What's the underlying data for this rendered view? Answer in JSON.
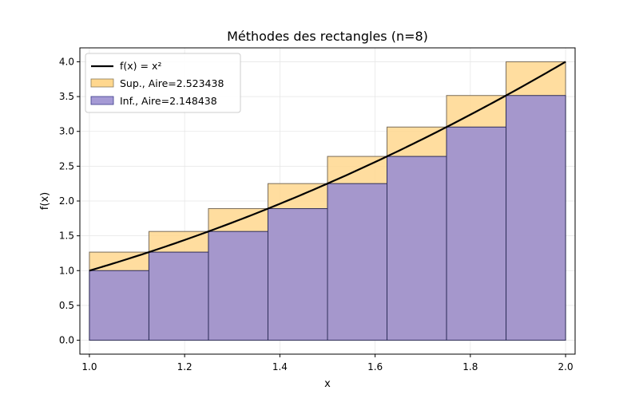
{
  "chart_data": {
    "type": "bar",
    "title": "Méthodes des rectangles (n=8)",
    "xlabel": "x",
    "ylabel": "f(x)",
    "xlim": [
      0.98,
      2.02
    ],
    "ylim": [
      -0.2,
      4.2
    ],
    "grid": true,
    "legend_position": "top-left",
    "x_ticks": [
      1.0,
      1.2,
      1.4,
      1.6,
      1.8,
      2.0
    ],
    "x_tick_labels": [
      "1.0",
      "1.2",
      "1.4",
      "1.6",
      "1.8",
      "2.0"
    ],
    "y_ticks": [
      0.0,
      0.5,
      1.0,
      1.5,
      2.0,
      2.5,
      3.0,
      3.5,
      4.0
    ],
    "y_tick_labels": [
      "0.0",
      "0.5",
      "1.0",
      "1.5",
      "2.0",
      "2.5",
      "3.0",
      "3.5",
      "4.0"
    ],
    "bin_edges": [
      1.0,
      1.125,
      1.25,
      1.375,
      1.5,
      1.625,
      1.75,
      1.875,
      2.0
    ],
    "series": [
      {
        "name": "Sup., Aire=2.523438",
        "kind": "rectangles",
        "color": "#ffd78e",
        "values": [
          1.265625,
          1.5625,
          1.890625,
          2.25,
          2.640625,
          3.0625,
          3.515625,
          4.0
        ]
      },
      {
        "name": "Inf., Aire=2.148438",
        "kind": "rectangles",
        "color": "#9b8fd0",
        "values": [
          1.0,
          1.265625,
          1.5625,
          1.890625,
          2.25,
          2.640625,
          3.0625,
          3.515625
        ]
      },
      {
        "name": "f(x) = x²",
        "kind": "curve",
        "color": "#000000",
        "function": "x^2",
        "domain": [
          1.0,
          2.0
        ]
      }
    ]
  }
}
